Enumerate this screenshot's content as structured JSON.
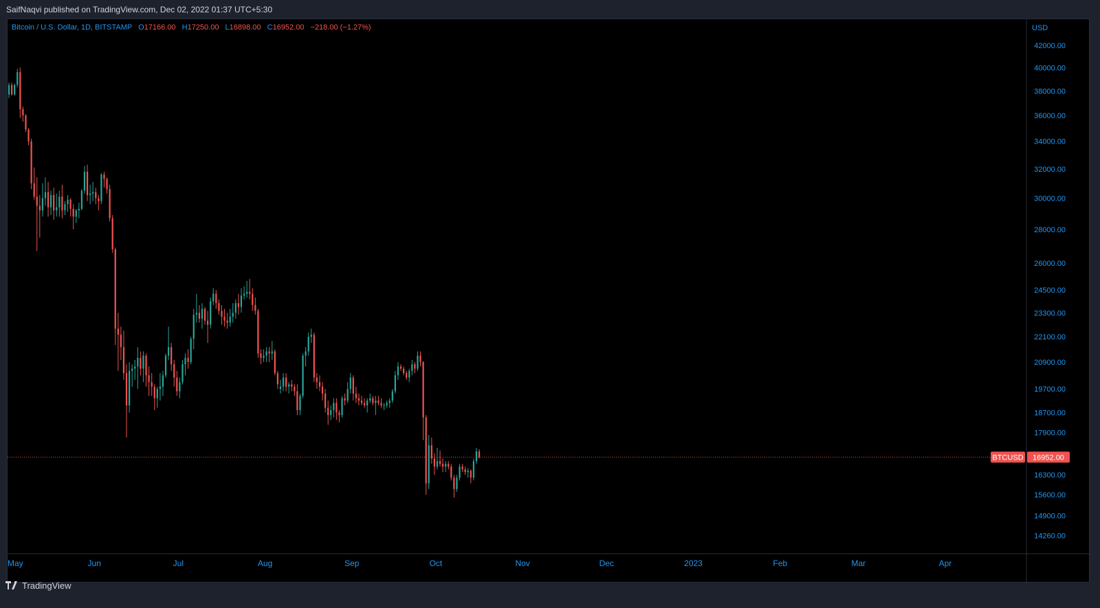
{
  "header": {
    "publisher": "SaifNaqvi published on TradingView.com, Dec 02, 2022 01:37 UTC+5:30"
  },
  "legend": {
    "symbol": "Bitcoin / U.S. Dollar, 1D, BITSTAMP",
    "open_label": "O",
    "open": "17166.00",
    "high_label": "H",
    "high": "17250.00",
    "low_label": "L",
    "low": "16898.00",
    "close_label": "C",
    "close": "16952.00",
    "change": "−218.00 (−1.27%)"
  },
  "footer": {
    "brand": "TradingView"
  },
  "colors": {
    "up": "#26a69a",
    "down": "#ef5350",
    "axis_text": "#2196f3",
    "background": "#000000",
    "frame": "#1e222d"
  },
  "chart_data": {
    "type": "candlestick",
    "currency": "USD",
    "price_label": {
      "symbol": "BTCUSD",
      "value": "16952.00",
      "numeric": 16952
    },
    "y_scale": "log",
    "ylim": [
      13700,
      44500
    ],
    "y_ticks": [
      42000,
      40000,
      38000,
      36000,
      34000,
      32000,
      30000,
      28000,
      26000,
      24500,
      23300,
      22100,
      20900,
      19700,
      18700,
      17900,
      16300,
      15600,
      14900,
      14260
    ],
    "y_tick_labels": [
      "42000.00",
      "40000.00",
      "38000.00",
      "36000.00",
      "34000.00",
      "32000.00",
      "30000.00",
      "28000.00",
      "26000.00",
      "24500.00",
      "23300.00",
      "22100.00",
      "20900.00",
      "19700.00",
      "18700.00",
      "17900.00",
      "16300.00",
      "15600.00",
      "14900.00",
      "14260.00"
    ],
    "x_range": [
      "2022-05-01",
      "2023-04-30"
    ],
    "x_ticks": [
      {
        "label": "May",
        "date": "2022-05-01"
      },
      {
        "label": "Jun",
        "date": "2022-06-01"
      },
      {
        "label": "Jul",
        "date": "2022-07-01"
      },
      {
        "label": "Aug",
        "date": "2022-08-01"
      },
      {
        "label": "Sep",
        "date": "2022-09-01"
      },
      {
        "label": "Oct",
        "date": "2022-10-01"
      },
      {
        "label": "Nov",
        "date": "2022-11-01"
      },
      {
        "label": "Dec",
        "date": "2022-12-01"
      },
      {
        "label": "2023",
        "date": "2023-01-01"
      },
      {
        "label": "Feb",
        "date": "2023-02-01"
      },
      {
        "label": "Mar",
        "date": "2023-03-01"
      },
      {
        "label": "Apr",
        "date": "2023-04-01"
      }
    ],
    "grid": false,
    "first_date": "2022-05-01",
    "ohlc": [
      [
        37700,
        38700,
        37400,
        38500
      ],
      [
        38500,
        38700,
        37600,
        37700
      ],
      [
        37700,
        38600,
        37600,
        38500
      ],
      [
        38500,
        39900,
        38300,
        39600
      ],
      [
        39600,
        40000,
        35800,
        36500
      ],
      [
        36500,
        36700,
        35500,
        36000
      ],
      [
        36000,
        36100,
        34700,
        34900
      ],
      [
        34900,
        35000,
        33700,
        34000
      ],
      [
        34000,
        34200,
        30600,
        31000
      ],
      [
        31000,
        32100,
        29900,
        30100
      ],
      [
        30100,
        31400,
        26700,
        29500
      ],
      [
        29500,
        30200,
        27500,
        29200
      ],
      [
        29200,
        31000,
        28800,
        30000
      ],
      [
        30000,
        31400,
        29500,
        30400
      ],
      [
        30400,
        31100,
        28800,
        29400
      ],
      [
        29400,
        30500,
        28900,
        30200
      ],
      [
        30200,
        30700,
        28600,
        29200
      ],
      [
        29200,
        30300,
        28800,
        29400
      ],
      [
        29400,
        30500,
        28800,
        30100
      ],
      [
        30100,
        30900,
        28700,
        29200
      ],
      [
        29200,
        29800,
        28900,
        29600
      ],
      [
        29600,
        30200,
        29100,
        29900
      ],
      [
        29900,
        30000,
        28800,
        29300
      ],
      [
        29300,
        29600,
        28000,
        28800
      ],
      [
        28800,
        29300,
        28400,
        29200
      ],
      [
        29200,
        29700,
        28700,
        29300
      ],
      [
        29300,
        30600,
        29200,
        30500
      ],
      [
        30500,
        32200,
        30300,
        31800
      ],
      [
        31800,
        32300,
        29800,
        30200
      ],
      [
        30200,
        30900,
        29600,
        30300
      ],
      [
        30300,
        31100,
        29800,
        30400
      ],
      [
        30400,
        30700,
        29600,
        30000
      ],
      [
        30000,
        30200,
        29200,
        29800
      ],
      [
        29800,
        31700,
        29600,
        31600
      ],
      [
        31600,
        31800,
        30700,
        31300
      ],
      [
        31300,
        31400,
        30300,
        30600
      ],
      [
        30600,
        30900,
        28500,
        28700
      ],
      [
        28700,
        28900,
        26600,
        26800
      ],
      [
        26800,
        26900,
        21700,
        22500
      ],
      [
        22500,
        23300,
        20500,
        22200
      ],
      [
        22200,
        22600,
        21000,
        21600
      ],
      [
        21600,
        22400,
        20100,
        20400
      ],
      [
        20400,
        20800,
        17700,
        19000
      ],
      [
        19000,
        20900,
        18700,
        20500
      ],
      [
        20500,
        20800,
        19800,
        20600
      ],
      [
        20600,
        21000,
        20100,
        20700
      ],
      [
        20700,
        21600,
        19700,
        21100
      ],
      [
        21100,
        21400,
        20300,
        20600
      ],
      [
        20600,
        21400,
        20000,
        21200
      ],
      [
        21200,
        21300,
        19800,
        20300
      ],
      [
        20300,
        20700,
        19400,
        20000
      ],
      [
        20000,
        20400,
        19400,
        19800
      ],
      [
        19800,
        19900,
        18800,
        19300
      ],
      [
        19300,
        19800,
        18900,
        19700
      ],
      [
        19700,
        20400,
        19200,
        19800
      ],
      [
        19800,
        20500,
        19400,
        20300
      ],
      [
        20300,
        21300,
        20200,
        21200
      ],
      [
        21200,
        22600,
        21000,
        21600
      ],
      [
        21600,
        21800,
        20500,
        20800
      ],
      [
        20800,
        21000,
        19800,
        20200
      ],
      [
        20200,
        20500,
        19400,
        19600
      ],
      [
        19600,
        20200,
        19300,
        20000
      ],
      [
        20000,
        21000,
        19900,
        20800
      ],
      [
        20800,
        21300,
        20300,
        21100
      ],
      [
        21100,
        21500,
        20600,
        20900
      ],
      [
        20900,
        22100,
        20800,
        22000
      ],
      [
        22000,
        23500,
        21500,
        23200
      ],
      [
        23200,
        24300,
        22800,
        23300
      ],
      [
        23300,
        23700,
        22800,
        23000
      ],
      [
        23000,
        23800,
        22500,
        23500
      ],
      [
        23500,
        23600,
        22700,
        22900
      ],
      [
        22900,
        23400,
        21800,
        22700
      ],
      [
        22700,
        24100,
        22500,
        23900
      ],
      [
        23900,
        24600,
        23700,
        24300
      ],
      [
        24300,
        24500,
        23500,
        23800
      ],
      [
        23800,
        24000,
        23200,
        23400
      ],
      [
        23400,
        23700,
        22700,
        23100
      ],
      [
        23100,
        23500,
        22600,
        22900
      ],
      [
        22900,
        23300,
        22500,
        22800
      ],
      [
        22800,
        23500,
        22600,
        23100
      ],
      [
        23100,
        23800,
        22800,
        23300
      ],
      [
        23300,
        24000,
        23000,
        23800
      ],
      [
        23800,
        24300,
        23200,
        23600
      ],
      [
        23600,
        24600,
        23300,
        24200
      ],
      [
        24200,
        24700,
        24000,
        24300
      ],
      [
        24300,
        25000,
        24100,
        24400
      ],
      [
        24400,
        25100,
        24000,
        24300
      ],
      [
        24300,
        24600,
        23400,
        23700
      ],
      [
        23700,
        24100,
        23200,
        23400
      ],
      [
        23400,
        23500,
        21100,
        21300
      ],
      [
        21300,
        21500,
        20800,
        21100
      ],
      [
        21100,
        21500,
        20900,
        21200
      ],
      [
        21200,
        21600,
        20900,
        21400
      ],
      [
        21400,
        21600,
        20900,
        21300
      ],
      [
        21300,
        21900,
        21000,
        21400
      ],
      [
        21400,
        21500,
        20300,
        20400
      ],
      [
        20400,
        20500,
        19700,
        19900
      ],
      [
        19700,
        20100,
        19500,
        19800
      ],
      [
        19800,
        20400,
        19600,
        20200
      ],
      [
        20200,
        20400,
        19600,
        19800
      ],
      [
        19800,
        20000,
        19500,
        19900
      ],
      [
        19900,
        20100,
        19600,
        19800
      ],
      [
        19800,
        19900,
        19400,
        19600
      ],
      [
        19600,
        19900,
        18600,
        18800
      ],
      [
        18800,
        19500,
        18600,
        19400
      ],
      [
        19400,
        21300,
        19300,
        21200
      ],
      [
        21200,
        21600,
        20700,
        21400
      ],
      [
        21400,
        22300,
        21200,
        22100
      ],
      [
        22100,
        22500,
        21800,
        22200
      ],
      [
        22200,
        22300,
        20000,
        20200
      ],
      [
        20200,
        20400,
        19700,
        20000
      ],
      [
        20000,
        20300,
        19600,
        19800
      ],
      [
        19800,
        20000,
        19200,
        19500
      ],
      [
        19500,
        19700,
        18700,
        18900
      ],
      [
        18900,
        19200,
        18200,
        18600
      ],
      [
        18600,
        19000,
        18400,
        18800
      ],
      [
        18800,
        19300,
        18500,
        19100
      ],
      [
        19100,
        19300,
        18400,
        18700
      ],
      [
        18700,
        18800,
        18300,
        18600
      ],
      [
        18600,
        19400,
        18500,
        19300
      ],
      [
        19300,
        19500,
        19000,
        19200
      ],
      [
        19200,
        20000,
        19100,
        19700
      ],
      [
        19700,
        20400,
        19500,
        20200
      ],
      [
        20200,
        20300,
        19200,
        19500
      ],
      [
        19500,
        19800,
        19100,
        19300
      ],
      [
        19300,
        19500,
        19000,
        19200
      ],
      [
        19200,
        19400,
        19000,
        19100
      ],
      [
        19100,
        19300,
        18900,
        19000
      ],
      [
        19000,
        19300,
        18700,
        19200
      ],
      [
        19200,
        19500,
        19100,
        19300
      ],
      [
        19300,
        19400,
        19000,
        19100
      ],
      [
        19100,
        19400,
        18600,
        19200
      ],
      [
        19200,
        19400,
        19000,
        19100
      ],
      [
        19100,
        19300,
        18900,
        19000
      ],
      [
        19000,
        19100,
        18800,
        19000
      ],
      [
        19000,
        19200,
        18900,
        19100
      ],
      [
        19100,
        19300,
        18900,
        19200
      ],
      [
        19200,
        19700,
        19100,
        19600
      ],
      [
        19600,
        20500,
        19500,
        20300
      ],
      [
        20300,
        20900,
        20100,
        20700
      ],
      [
        20700,
        20800,
        20500,
        20600
      ],
      [
        20600,
        20700,
        20300,
        20400
      ],
      [
        20400,
        20500,
        20100,
        20200
      ],
      [
        20200,
        20600,
        20000,
        20500
      ],
      [
        20500,
        21000,
        20300,
        20800
      ],
      [
        20800,
        20900,
        20400,
        20600
      ],
      [
        20600,
        21400,
        20500,
        21200
      ],
      [
        21200,
        21400,
        20700,
        20900
      ],
      [
        20900,
        20950,
        17600,
        18500
      ],
      [
        18500,
        18600,
        15600,
        16000
      ],
      [
        16000,
        17800,
        15800,
        17400
      ],
      [
        17400,
        17700,
        16700,
        16900
      ],
      [
        16900,
        17100,
        16300,
        16600
      ],
      [
        16600,
        17300,
        16500,
        16800
      ],
      [
        16800,
        17200,
        16600,
        16700
      ],
      [
        16700,
        16900,
        16400,
        16600
      ],
      [
        16600,
        16800,
        16400,
        16700
      ],
      [
        16700,
        16800,
        16500,
        16600
      ],
      [
        16600,
        16700,
        16100,
        16200
      ],
      [
        16200,
        16300,
        15500,
        15800
      ],
      [
        15800,
        16300,
        15700,
        16200
      ],
      [
        16200,
        16700,
        16100,
        16600
      ],
      [
        16600,
        16700,
        16400,
        16500
      ],
      [
        16500,
        16600,
        16300,
        16400
      ],
      [
        16400,
        16550,
        16200,
        16450
      ],
      [
        16450,
        16500,
        16000,
        16200
      ],
      [
        16200,
        16900,
        16100,
        16800
      ],
      [
        16800,
        17300,
        16700,
        17170
      ],
      [
        17166,
        17250,
        16898,
        16952
      ]
    ]
  }
}
